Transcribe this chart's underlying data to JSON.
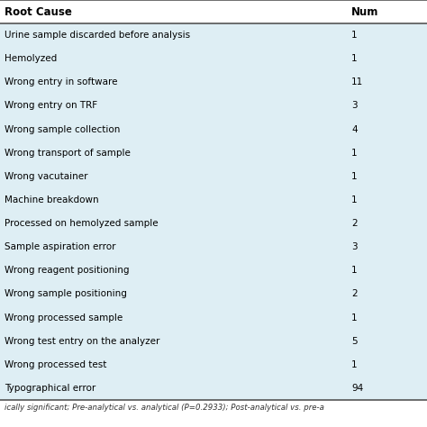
{
  "header": [
    "Root Cause",
    "Num"
  ],
  "rows": [
    [
      "Urine sample discarded before analysis",
      "1"
    ],
    [
      "Hemolyzed",
      "1"
    ],
    [
      "Wrong entry in software",
      "11"
    ],
    [
      "Wrong entry on TRF",
      "3"
    ],
    [
      "Wrong sample collection",
      "4"
    ],
    [
      "Wrong transport of sample",
      "1"
    ],
    [
      "Wrong vacutainer",
      "1"
    ],
    [
      "Machine breakdown",
      "1"
    ],
    [
      "Processed on hemolyzed sample",
      "2"
    ],
    [
      "Sample aspiration error",
      "3"
    ],
    [
      "Wrong reagent positioning",
      "1"
    ],
    [
      "Wrong sample positioning",
      "2"
    ],
    [
      "Wrong processed sample",
      "1"
    ],
    [
      "Wrong test entry on the analyzer",
      "5"
    ],
    [
      "Wrong processed test",
      "1"
    ],
    [
      "Typographical error",
      "94"
    ]
  ],
  "header_bg": "#ffffff",
  "row_bg": "#deeef4",
  "footer_text": "ically significant; Pre-analytical vs. analytical (P=0.2933); Post-analytical vs. pre-a",
  "header_text_color": "#000000",
  "row_text_color": "#000000",
  "font_size": 7.5,
  "header_font_size": 8.5,
  "footer_font_size": 6.2
}
